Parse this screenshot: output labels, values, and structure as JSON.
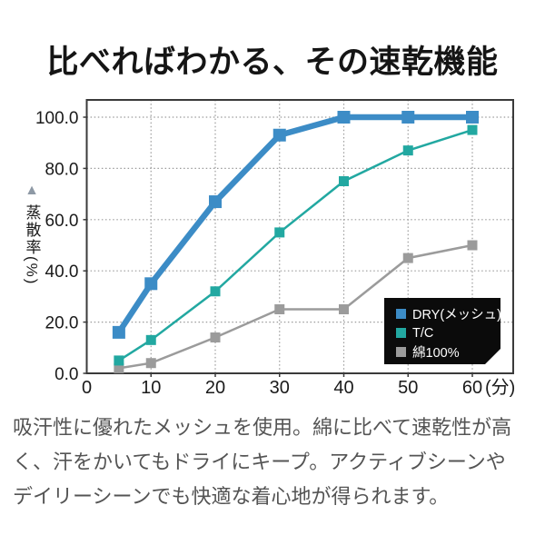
{
  "title": "比べればわかる、その速乾機能",
  "description": "吸汗性に優れたメッシュを使用。綿に比べて速乾性が高く、汗をかいてもドライにキープ。アクティブシーンやデイリーシーンでも快適な着心地が得られます。",
  "chart_data": {
    "type": "line",
    "ylabel": "蒸散率(%)",
    "ylabel_marker": "▲",
    "x": [
      5,
      10,
      20,
      30,
      40,
      50,
      60
    ],
    "series": [
      {
        "name": "DRY(メッシュ)",
        "color": "#3c8cc6",
        "emphasized": true,
        "values": [
          16,
          35,
          67,
          93,
          100,
          100,
          100
        ]
      },
      {
        "name": "T/C",
        "color": "#22a8a1",
        "emphasized": false,
        "values": [
          5,
          13,
          32,
          55,
          75,
          87,
          95
        ]
      },
      {
        "name": "綿100%",
        "color": "#9b9b9b",
        "emphasized": false,
        "values": [
          2,
          4,
          14,
          25,
          25,
          45,
          50
        ]
      }
    ],
    "x_axis": {
      "ticks": [
        0,
        10,
        20,
        30,
        40,
        50,
        60
      ],
      "labels": [
        "0",
        "10",
        "20",
        "30",
        "40",
        "50",
        "60"
      ],
      "unit": "(分)"
    },
    "y_axis": {
      "ticks": [
        0,
        20,
        40,
        60,
        80,
        100
      ],
      "labels": [
        "0.0",
        "20.0",
        "40.0",
        "60.0",
        "80.0",
        "100.0"
      ]
    },
    "xlim": [
      0,
      66.3
    ],
    "ylim": [
      0,
      106.7
    ],
    "grid": "dotted",
    "legend_position": "bottom-right",
    "legend_bg": "#0b0b0b"
  },
  "colors": {
    "title_text": "#151515",
    "axis_text": "#1a1a1a",
    "grid": "#9b9b9b",
    "plot_border": "#3a3a3a",
    "description_text": "#545454",
    "ylabel_marker": "#8e99a5",
    "legend_text": "#ffffff"
  }
}
